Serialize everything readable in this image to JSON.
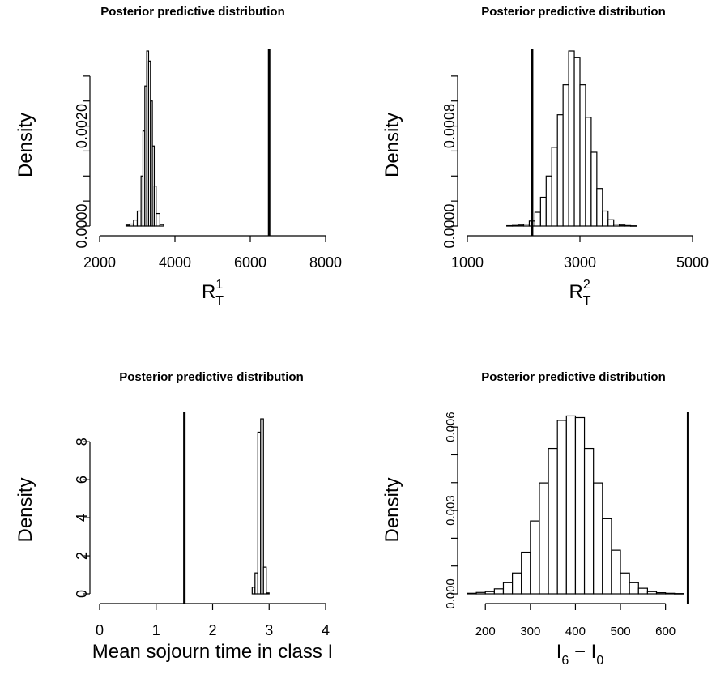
{
  "chart_data": [
    {
      "type": "bar",
      "subtype": "histogram",
      "title": "Posterior predictive distribution",
      "xlabel": {
        "base": "R",
        "sub": "T",
        "sup": "1"
      },
      "ylabel": "Density",
      "xlim": [
        2000,
        8000
      ],
      "ylim": [
        0,
        0.0035
      ],
      "x_ticks": [
        2000,
        4000,
        6000,
        8000
      ],
      "x_tick_labels": [
        "2000",
        "4000",
        "6000",
        "8000"
      ],
      "y_ticks": [
        0,
        0.0005,
        0.001,
        0.0015,
        0.002,
        0.0025,
        0.003
      ],
      "y_tick_labels": [
        "0.0000",
        "",
        "",
        "",
        "0.0020",
        "",
        ""
      ],
      "bins": [
        {
          "x0": 2700,
          "x1": 2800,
          "density": 2e-05
        },
        {
          "x0": 2800,
          "x1": 2900,
          "density": 4e-05
        },
        {
          "x0": 2900,
          "x1": 3000,
          "density": 0.00012
        },
        {
          "x0": 3000,
          "x1": 3100,
          "density": 0.0003
        },
        {
          "x0": 3100,
          "x1": 3150,
          "density": 0.001
        },
        {
          "x0": 3150,
          "x1": 3200,
          "density": 0.0019
        },
        {
          "x0": 3200,
          "x1": 3250,
          "density": 0.0028
        },
        {
          "x0": 3250,
          "x1": 3300,
          "density": 0.0035
        },
        {
          "x0": 3300,
          "x1": 3350,
          "density": 0.0033
        },
        {
          "x0": 3350,
          "x1": 3400,
          "density": 0.0025
        },
        {
          "x0": 3400,
          "x1": 3450,
          "density": 0.0016
        },
        {
          "x0": 3450,
          "x1": 3500,
          "density": 0.0008
        },
        {
          "x0": 3500,
          "x1": 3600,
          "density": 0.00025
        },
        {
          "x0": 3600,
          "x1": 3700,
          "density": 3e-05
        }
      ],
      "observed_line": 6500
    },
    {
      "type": "bar",
      "subtype": "histogram",
      "title": "Posterior predictive distribution",
      "xlabel": {
        "base": "R",
        "sub": "T",
        "sup": "2"
      },
      "ylabel": "Density",
      "xlim": [
        1000,
        5000
      ],
      "ylim": [
        0,
        0.0014
      ],
      "x_ticks": [
        1000,
        3000,
        5000
      ],
      "x_tick_labels": [
        "1000",
        "3000",
        "5000"
      ],
      "y_ticks": [
        0,
        0.0002,
        0.0004,
        0.0006,
        0.0008,
        0.001,
        0.0012
      ],
      "y_tick_labels": [
        "0.0000",
        "",
        "",
        "",
        "0.0008",
        "",
        ""
      ],
      "bins": [
        {
          "x0": 1700,
          "x1": 1800,
          "density": 3e-06
        },
        {
          "x0": 1800,
          "x1": 1900,
          "density": 5e-06
        },
        {
          "x0": 1900,
          "x1": 2000,
          "density": 8e-06
        },
        {
          "x0": 2000,
          "x1": 2100,
          "density": 1.5e-05
        },
        {
          "x0": 2100,
          "x1": 2200,
          "density": 4e-05
        },
        {
          "x0": 2200,
          "x1": 2300,
          "density": 0.00011
        },
        {
          "x0": 2300,
          "x1": 2400,
          "density": 0.00023
        },
        {
          "x0": 2400,
          "x1": 2500,
          "density": 0.0004
        },
        {
          "x0": 2500,
          "x1": 2600,
          "density": 0.00063
        },
        {
          "x0": 2600,
          "x1": 2700,
          "density": 0.00089
        },
        {
          "x0": 2700,
          "x1": 2800,
          "density": 0.00113
        },
        {
          "x0": 2800,
          "x1": 2900,
          "density": 0.0014
        },
        {
          "x0": 2900,
          "x1": 3000,
          "density": 0.00135
        },
        {
          "x0": 3000,
          "x1": 3100,
          "density": 0.00113
        },
        {
          "x0": 3100,
          "x1": 3200,
          "density": 0.00087
        },
        {
          "x0": 3200,
          "x1": 3300,
          "density": 0.00059
        },
        {
          "x0": 3300,
          "x1": 3400,
          "density": 0.0003
        },
        {
          "x0": 3400,
          "x1": 3500,
          "density": 0.00012
        },
        {
          "x0": 3500,
          "x1": 3600,
          "density": 5e-05
        },
        {
          "x0": 3600,
          "x1": 3700,
          "density": 1.5e-05
        },
        {
          "x0": 3700,
          "x1": 3800,
          "density": 8e-06
        },
        {
          "x0": 3800,
          "x1": 3900,
          "density": 4e-06
        },
        {
          "x0": 3900,
          "x1": 4000,
          "density": 2e-06
        }
      ],
      "observed_line": 2150
    },
    {
      "type": "bar",
      "subtype": "histogram",
      "title": "Posterior predictive distribution",
      "xlabel": "Mean sojourn time in class I",
      "ylabel": "Density",
      "xlim": [
        0,
        4
      ],
      "ylim": [
        0,
        9.5
      ],
      "x_ticks": [
        0,
        1,
        2,
        3,
        4
      ],
      "x_tick_labels": [
        "0",
        "1",
        "2",
        "3",
        "4"
      ],
      "y_ticks": [
        0,
        2,
        4,
        6,
        8
      ],
      "y_tick_labels": [
        "0",
        "2",
        "4",
        "6",
        "8"
      ],
      "bins": [
        {
          "x0": 2.7,
          "x1": 2.75,
          "density": 0.35
        },
        {
          "x0": 2.75,
          "x1": 2.8,
          "density": 1.1
        },
        {
          "x0": 2.8,
          "x1": 2.85,
          "density": 8.5
        },
        {
          "x0": 2.85,
          "x1": 2.9,
          "density": 9.2
        },
        {
          "x0": 2.9,
          "x1": 2.95,
          "density": 1.4
        },
        {
          "x0": 2.95,
          "x1": 3.0,
          "density": 0.05
        }
      ],
      "observed_line": 1.5
    },
    {
      "type": "bar",
      "subtype": "histogram",
      "title": "Posterior predictive distribution",
      "xlabel": {
        "base": "I",
        "sub": "6",
        "minus": "I",
        "sub2": "0"
      },
      "ylabel": "Density",
      "xlim": [
        160,
        660
      ],
      "ylim": [
        0,
        0.0065
      ],
      "x_ticks": [
        200,
        300,
        400,
        500,
        600
      ],
      "x_tick_labels": [
        "200",
        "300",
        "400",
        "500",
        "600"
      ],
      "y_ticks": [
        0,
        0.001,
        0.002,
        0.003,
        0.004,
        0.005,
        0.006
      ],
      "y_tick_labels": [
        "0.000",
        "",
        "",
        "0.003",
        "",
        "",
        "0.006"
      ],
      "bins": [
        {
          "x0": 160,
          "x1": 180,
          "density": 2e-05
        },
        {
          "x0": 180,
          "x1": 200,
          "density": 5e-05
        },
        {
          "x0": 200,
          "x1": 220,
          "density": 8e-05
        },
        {
          "x0": 220,
          "x1": 240,
          "density": 0.00018
        },
        {
          "x0": 240,
          "x1": 260,
          "density": 0.0004
        },
        {
          "x0": 260,
          "x1": 280,
          "density": 0.00075
        },
        {
          "x0": 280,
          "x1": 300,
          "density": 0.0015
        },
        {
          "x0": 300,
          "x1": 320,
          "density": 0.00262
        },
        {
          "x0": 320,
          "x1": 340,
          "density": 0.00399
        },
        {
          "x0": 340,
          "x1": 360,
          "density": 0.00523
        },
        {
          "x0": 360,
          "x1": 380,
          "density": 0.00624
        },
        {
          "x0": 380,
          "x1": 400,
          "density": 0.0064
        },
        {
          "x0": 400,
          "x1": 420,
          "density": 0.00634
        },
        {
          "x0": 420,
          "x1": 440,
          "density": 0.00523
        },
        {
          "x0": 440,
          "x1": 460,
          "density": 0.00399
        },
        {
          "x0": 460,
          "x1": 480,
          "density": 0.0027
        },
        {
          "x0": 480,
          "x1": 500,
          "density": 0.00157
        },
        {
          "x0": 500,
          "x1": 520,
          "density": 0.00075
        },
        {
          "x0": 520,
          "x1": 540,
          "density": 0.0004
        },
        {
          "x0": 540,
          "x1": 560,
          "density": 0.0002
        },
        {
          "x0": 560,
          "x1": 580,
          "density": 8e-05
        },
        {
          "x0": 580,
          "x1": 600,
          "density": 4e-05
        },
        {
          "x0": 600,
          "x1": 620,
          "density": 2e-05
        },
        {
          "x0": 620,
          "x1": 640,
          "density": 1e-05
        }
      ],
      "observed_line": 650
    }
  ]
}
